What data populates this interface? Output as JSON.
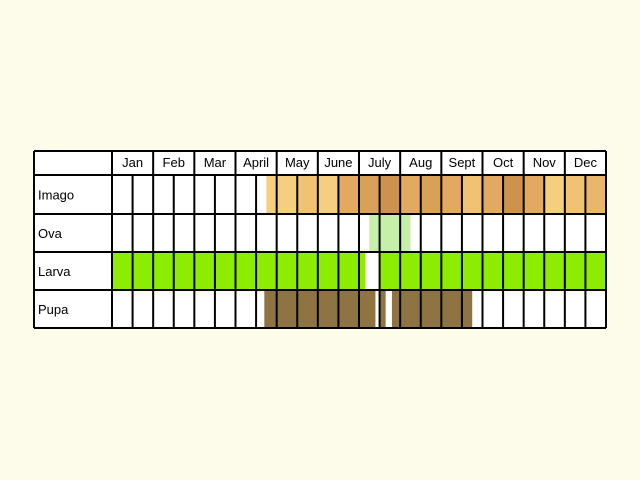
{
  "months": [
    "Jan",
    "Feb",
    "Mar",
    "April",
    "May",
    "June",
    "July",
    "Aug",
    "Sept",
    "Oct",
    "Nov",
    "Dec"
  ],
  "stages": [
    {
      "label": "Imago",
      "segments": [
        {
          "start_week": 7.5,
          "end_week": 9,
          "color": "#f5cf80"
        },
        {
          "start_week": 9,
          "end_week": 10,
          "color": "#efc274"
        },
        {
          "start_week": 10,
          "end_week": 11,
          "color": "#f5cf80"
        },
        {
          "start_week": 11,
          "end_week": 12,
          "color": "#e2aa60"
        },
        {
          "start_week": 12,
          "end_week": 13,
          "color": "#d9a05a"
        },
        {
          "start_week": 13,
          "end_week": 14,
          "color": "#cd924e"
        },
        {
          "start_week": 14,
          "end_week": 15,
          "color": "#e2aa60"
        },
        {
          "start_week": 15,
          "end_week": 16,
          "color": "#d9a05a"
        },
        {
          "start_week": 16,
          "end_week": 17,
          "color": "#e2aa60"
        },
        {
          "start_week": 17,
          "end_week": 18,
          "color": "#efc274"
        },
        {
          "start_week": 18,
          "end_week": 19,
          "color": "#e2aa60"
        },
        {
          "start_week": 19,
          "end_week": 20,
          "color": "#cd924e"
        },
        {
          "start_week": 20,
          "end_week": 21,
          "color": "#e2aa60"
        },
        {
          "start_week": 21,
          "end_week": 22,
          "color": "#f5cf80"
        },
        {
          "start_week": 22,
          "end_week": 23,
          "color": "#efc274"
        },
        {
          "start_week": 23,
          "end_week": 24,
          "color": "#e8b86a"
        }
      ]
    },
    {
      "label": "Ova",
      "segments": [
        {
          "start_week": 12.5,
          "end_week": 14.5,
          "color": "#c6f0a8"
        }
      ]
    },
    {
      "label": "Larva",
      "segments": [
        {
          "start_week": 0,
          "end_week": 12.3,
          "color": "#8ced00"
        },
        {
          "start_week": 12.3,
          "end_week": 13,
          "color": "#ffffff"
        },
        {
          "start_week": 13,
          "end_week": 24,
          "color": "#8ced00"
        }
      ]
    },
    {
      "label": "Pupa",
      "segments": [
        {
          "start_week": 7.4,
          "end_week": 12.8,
          "color": "#8e7442"
        },
        {
          "start_week": 12.8,
          "end_week": 13.0,
          "color": "#ffffff"
        },
        {
          "start_week": 13.0,
          "end_week": 13.3,
          "color": "#8e7442"
        },
        {
          "start_week": 13.3,
          "end_week": 13.6,
          "color": "#ffffff"
        },
        {
          "start_week": 13.6,
          "end_week": 17.5,
          "color": "#8e7442"
        }
      ]
    }
  ]
}
